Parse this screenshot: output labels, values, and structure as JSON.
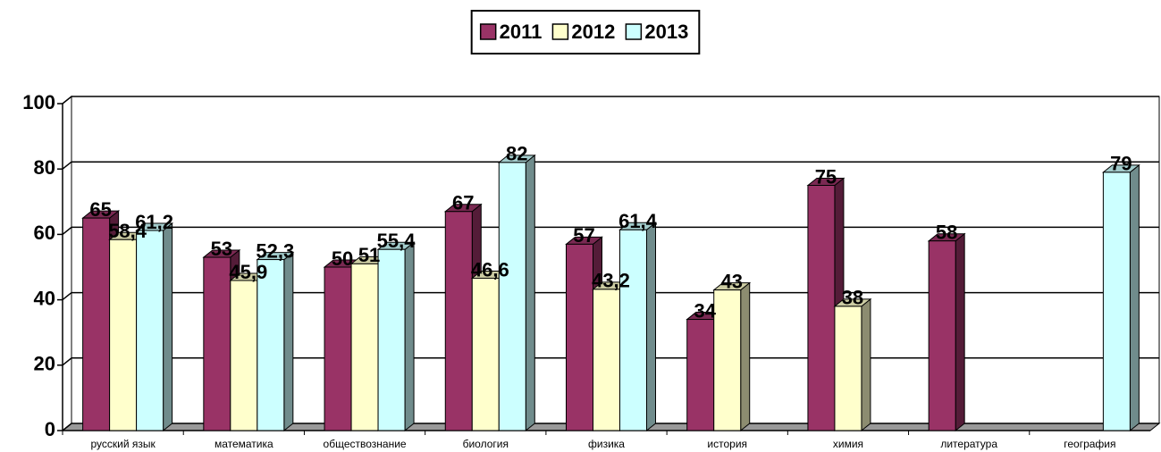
{
  "chart_data": {
    "type": "bar3d",
    "categories": [
      "русский язык",
      "математика",
      "обществознание",
      "биология",
      "физика",
      "история",
      "химия",
      "литература",
      "география"
    ],
    "series": [
      {
        "name": "2011",
        "color": "#993366",
        "values": [
          65,
          53,
          50,
          67,
          57,
          34,
          75,
          58,
          null
        ],
        "value_labels": [
          "65",
          "53",
          "50",
          "67",
          "57",
          "34",
          "75",
          "58",
          null
        ]
      },
      {
        "name": "2012",
        "color": "#ffffcc",
        "values": [
          58.4,
          45.9,
          51,
          46.6,
          43.2,
          43,
          38,
          null,
          null
        ],
        "value_labels": [
          "58,4",
          "45,9",
          "51",
          "46,6",
          "43,2",
          "43",
          "38",
          null,
          null
        ]
      },
      {
        "name": "2013",
        "color": "#ccffff",
        "values": [
          61.2,
          52.3,
          55.4,
          82,
          61.4,
          null,
          null,
          null,
          79
        ],
        "value_labels": [
          "61,2",
          "52,3",
          "55,4",
          "82",
          "61,4",
          null,
          null,
          null,
          "79"
        ]
      }
    ],
    "ylim": [
      0,
      100
    ],
    "yticks": [
      0,
      20,
      40,
      60,
      80,
      100
    ],
    "grid": true,
    "legend": "top"
  }
}
